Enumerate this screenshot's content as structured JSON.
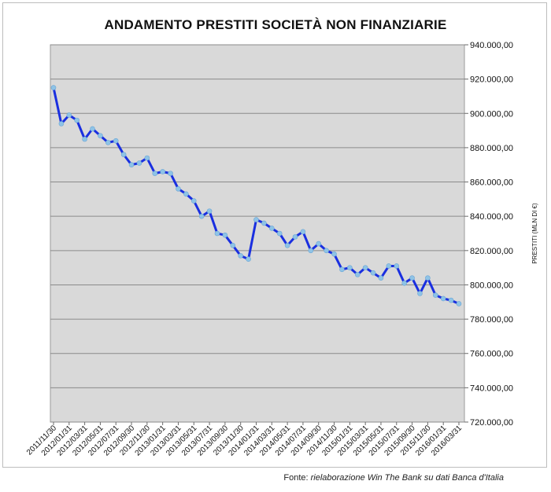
{
  "chart_data": {
    "type": "line",
    "title": "ANDAMENTO PRESTITI SOCIETÀ NON FINANZIARIE",
    "xlabel": "",
    "ylabel": "PRESTITI (MLN DI €)",
    "ylim": [
      720000,
      940000
    ],
    "yticks": [
      "720.000,00",
      "740.000,00",
      "760.000,00",
      "780.000,00",
      "800.000,00",
      "820.000,00",
      "840.000,00",
      "860.000,00",
      "880.000,00",
      "900.000,00",
      "920.000,00",
      "940.000,00"
    ],
    "xticks": [
      "2011/11/30",
      "2012/01/31",
      "2012/03/31",
      "2012/05/31",
      "2012/07/31",
      "2012/09/30",
      "2012/11/30",
      "2013/01/31",
      "2013/03/31",
      "2013/05/31",
      "2013/07/31",
      "2013/09/30",
      "2013/11/30",
      "2014/01/31",
      "2014/03/31",
      "2014/05/31",
      "2014/07/31",
      "2014/09/30",
      "2014/11/30",
      "2015/01/31",
      "2015/03/31",
      "2015/05/31",
      "2015/07/31",
      "2015/09/30",
      "2015/11/30",
      "2016/01/31",
      "2016/03/31"
    ],
    "grid": true,
    "line_color": "#1a2fe0",
    "marker_color": "#8fc3e6",
    "plot_background": "#d9d9d9",
    "series": [
      {
        "values": [
          915000,
          894000,
          899000,
          896000,
          885000,
          891000,
          887000,
          883000,
          884000,
          876000,
          870000,
          871000,
          874000,
          865000,
          866000,
          865000,
          856000,
          853000,
          849000,
          840000,
          843000,
          830000,
          829000,
          823000,
          817000,
          815000,
          838000,
          836000,
          833000,
          830000,
          823000,
          828000,
          831000,
          820000,
          824000,
          820000,
          818000,
          809000,
          810000,
          806000,
          810000,
          807000,
          804000,
          811000,
          811000,
          801000,
          804000,
          795000,
          804000,
          794000,
          792000,
          791000,
          789000
        ]
      }
    ]
  },
  "source": {
    "prefix": "Fonte: ",
    "text": "rielaborazione Win The Bank su dati Banca d'Italia"
  }
}
